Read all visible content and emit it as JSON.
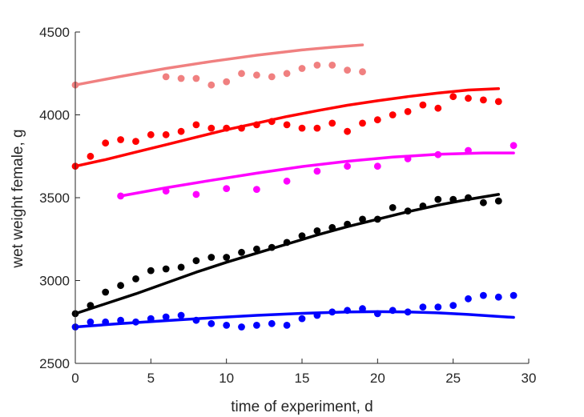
{
  "chart_data": {
    "type": "scatter",
    "xlabel": "time of experiment, d",
    "ylabel": "wet weight female, g",
    "xlim": [
      0,
      30
    ],
    "ylim": [
      2500,
      4500
    ],
    "xticks": [
      "0",
      "5",
      "10",
      "15",
      "20",
      "25",
      "30"
    ],
    "yticks": [
      "2500",
      "3000",
      "3500",
      "4000",
      "4500"
    ],
    "grid": false,
    "legend": "none",
    "series": [
      {
        "color": "#f08080",
        "points": {
          "x": [
            0,
            6,
            7,
            8,
            9,
            10,
            11,
            12,
            13,
            14,
            15,
            16,
            17,
            18,
            19
          ],
          "y": [
            4180,
            4230,
            4220,
            4220,
            4180,
            4200,
            4250,
            4240,
            4230,
            4250,
            4280,
            4300,
            4300,
            4270,
            4260
          ]
        },
        "fit": {
          "x": [
            0,
            3,
            6,
            9,
            12,
            15,
            17,
            19
          ],
          "y": [
            4180,
            4232,
            4280,
            4322,
            4360,
            4392,
            4408,
            4422
          ]
        }
      },
      {
        "color": "#ff0000",
        "points": {
          "x": [
            0,
            1,
            2,
            3,
            4,
            5,
            6,
            7,
            8,
            9,
            10,
            11,
            12,
            13,
            14,
            15,
            16,
            17,
            18,
            19,
            20,
            21,
            22,
            23,
            24,
            25,
            26,
            27,
            28
          ],
          "y": [
            3690,
            3750,
            3830,
            3850,
            3840,
            3880,
            3880,
            3900,
            3940,
            3920,
            3920,
            3920,
            3940,
            3960,
            3940,
            3920,
            3920,
            3950,
            3900,
            3950,
            3970,
            4000,
            4020,
            4060,
            4040,
            4110,
            4100,
            4090,
            4080
          ]
        },
        "fit": {
          "x": [
            0,
            2,
            4,
            6,
            8,
            10,
            12,
            14,
            16,
            18,
            20,
            22,
            24,
            26,
            28
          ],
          "y": [
            3690,
            3730,
            3775,
            3820,
            3865,
            3910,
            3950,
            3990,
            4025,
            4058,
            4085,
            4110,
            4132,
            4150,
            4158
          ]
        }
      },
      {
        "color": "#ff00ff",
        "points": {
          "x": [
            3,
            6,
            8,
            10,
            12,
            14,
            16,
            18,
            20,
            22,
            24,
            26,
            29
          ],
          "y": [
            3510,
            3540,
            3520,
            3555,
            3550,
            3600,
            3660,
            3690,
            3690,
            3735,
            3760,
            3785,
            3815
          ]
        },
        "fit": {
          "x": [
            3,
            6,
            9,
            12,
            15,
            18,
            21,
            24,
            27,
            29
          ],
          "y": [
            3510,
            3560,
            3605,
            3648,
            3688,
            3720,
            3745,
            3762,
            3770,
            3770
          ]
        }
      },
      {
        "color": "#000000",
        "points": {
          "x": [
            0,
            1,
            2,
            3,
            4,
            5,
            6,
            7,
            8,
            9,
            10,
            11,
            12,
            13,
            14,
            15,
            16,
            17,
            18,
            19,
            20,
            21,
            22,
            23,
            24,
            25,
            26,
            27,
            28
          ],
          "y": [
            2800,
            2850,
            2930,
            2970,
            3010,
            3060,
            3070,
            3080,
            3120,
            3140,
            3140,
            3170,
            3190,
            3200,
            3230,
            3270,
            3300,
            3320,
            3340,
            3370,
            3370,
            3440,
            3420,
            3450,
            3490,
            3490,
            3500,
            3470,
            3480
          ]
        },
        "fit": {
          "x": [
            0,
            2,
            4,
            6,
            8,
            10,
            12,
            14,
            16,
            18,
            20,
            22,
            24,
            26,
            28
          ],
          "y": [
            2800,
            2860,
            2920,
            2985,
            3050,
            3110,
            3165,
            3220,
            3275,
            3325,
            3370,
            3415,
            3455,
            3490,
            3520
          ]
        }
      },
      {
        "color": "#0000ff",
        "points": {
          "x": [
            0,
            1,
            2,
            3,
            4,
            5,
            6,
            7,
            8,
            9,
            10,
            11,
            12,
            13,
            14,
            15,
            16,
            17,
            18,
            19,
            20,
            21,
            22,
            23,
            24,
            25,
            26,
            27,
            28,
            29
          ],
          "y": [
            2720,
            2750,
            2750,
            2760,
            2750,
            2770,
            2780,
            2790,
            2760,
            2740,
            2730,
            2720,
            2730,
            2740,
            2730,
            2770,
            2790,
            2810,
            2820,
            2830,
            2800,
            2820,
            2810,
            2840,
            2840,
            2850,
            2890,
            2910,
            2900,
            2910
          ]
        },
        "fit": {
          "x": [
            0,
            3,
            6,
            9,
            12,
            15,
            18,
            20,
            22,
            24,
            26,
            28,
            29
          ],
          "y": [
            2720,
            2740,
            2758,
            2775,
            2790,
            2802,
            2810,
            2812,
            2810,
            2805,
            2795,
            2783,
            2778
          ]
        }
      }
    ]
  }
}
